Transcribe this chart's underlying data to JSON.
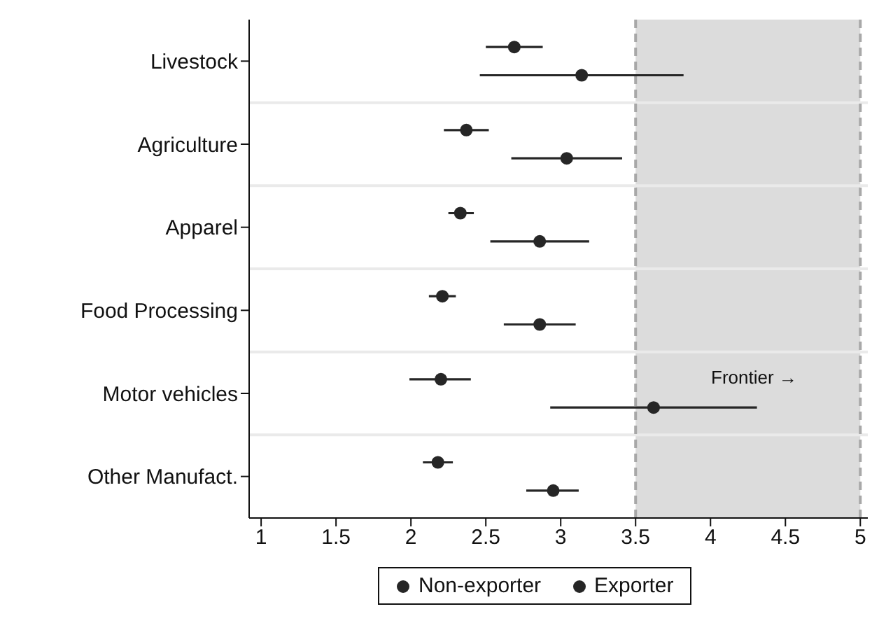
{
  "chart_data": {
    "type": "scatter",
    "orientation": "horizontal",
    "categories": [
      "Livestock",
      "Agriculture",
      "Apparel",
      "Food Processing",
      "Motor vehicles",
      "Other Manufact."
    ],
    "series": [
      {
        "name": "Non-exporter",
        "color": "#262626",
        "values": [
          2.69,
          2.37,
          2.33,
          2.21,
          2.2,
          2.18
        ],
        "errors": [
          [
            2.5,
            2.88
          ],
          [
            2.22,
            2.52
          ],
          [
            2.25,
            2.42
          ],
          [
            2.12,
            2.3
          ],
          [
            1.99,
            2.4
          ],
          [
            2.08,
            2.28
          ]
        ]
      },
      {
        "name": "Exporter",
        "color": "#262626",
        "values": [
          3.14,
          3.04,
          2.86,
          2.86,
          3.62,
          2.95
        ],
        "errors": [
          [
            2.46,
            3.82
          ],
          [
            2.67,
            3.41
          ],
          [
            2.53,
            3.19
          ],
          [
            2.62,
            3.1
          ],
          [
            2.93,
            4.31
          ],
          [
            2.77,
            3.12
          ]
        ]
      }
    ],
    "xlim": [
      0.92,
      5.05
    ],
    "xticks": [
      1,
      1.5,
      2,
      2.5,
      3,
      3.5,
      4,
      4.5,
      5
    ],
    "bands": [
      {
        "axis": "x",
        "from": 3.5,
        "to": 5,
        "color": "#dcdcdc"
      }
    ],
    "ref_lines": [
      {
        "axis": "x",
        "value": 3.5,
        "color": "#a8a8a8",
        "line_style": "dashed"
      },
      {
        "axis": "x",
        "value": 5,
        "color": "#a8a8a8",
        "line_style": "dashed"
      }
    ],
    "annotations": [
      "Frontier →"
    ],
    "grid": "y",
    "legend": "bottom",
    "marker": "circle"
  }
}
